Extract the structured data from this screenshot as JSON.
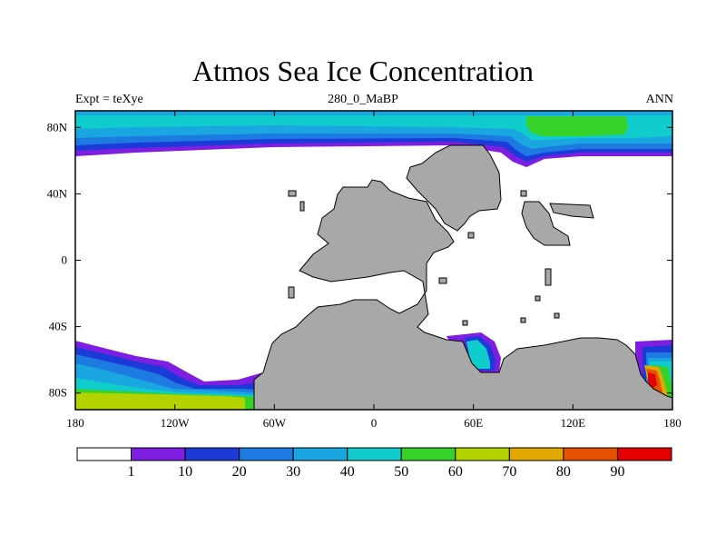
{
  "title": "Atmos Sea Ice Concentration",
  "left_string": "Expt = teXye",
  "center_string": "280_0_MaBP",
  "right_string": "ANN",
  "map": {
    "projection": "cylindrical-equidistant",
    "lon_range": [
      -180,
      180
    ],
    "lat_range": [
      -90,
      90
    ],
    "land_color": "#a8a8a8",
    "ocean_color": "#ffffff",
    "x_ticks": [
      {
        "lon": -180,
        "label": "180"
      },
      {
        "lon": -120,
        "label": "120W"
      },
      {
        "lon": -60,
        "label": "60W"
      },
      {
        "lon": 0,
        "label": "0"
      },
      {
        "lon": 60,
        "label": "60E"
      },
      {
        "lon": 120,
        "label": "120E"
      },
      {
        "lon": 180,
        "label": "180"
      }
    ],
    "y_ticks": [
      {
        "lat": 80,
        "label": "80N"
      },
      {
        "lat": 40,
        "label": "40N"
      },
      {
        "lat": 0,
        "label": "0"
      },
      {
        "lat": -40,
        "label": "40S"
      },
      {
        "lat": -80,
        "label": "80S"
      }
    ]
  },
  "colorbar": {
    "colors": [
      "#ffffff",
      "#7e1ee0",
      "#1c3ad8",
      "#1c7ae0",
      "#1aa6e0",
      "#10cccc",
      "#36d22a",
      "#b4d200",
      "#e2a800",
      "#e65200",
      "#e40000"
    ],
    "labels": [
      "1",
      "10",
      "20",
      "30",
      "40",
      "50",
      "60",
      "70",
      "80",
      "90"
    ]
  }
}
